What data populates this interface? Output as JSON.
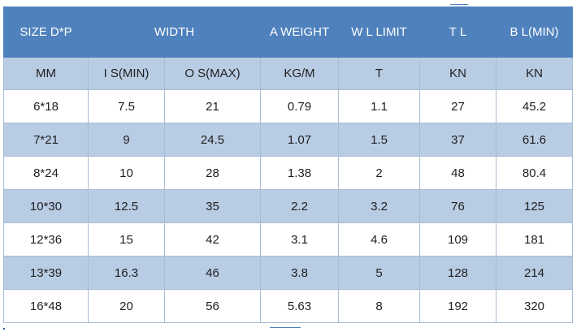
{
  "header": {
    "size": "SIZE D*P",
    "width": "WIDTH",
    "a_weight": "A WEIGHT",
    "wl_limit": "W L LIMIT",
    "tl": "T L",
    "bl": "B L(MIN)"
  },
  "units": [
    "MM",
    "I S(MIN)",
    "O S(MAX)",
    "KG/M",
    "T",
    "KN",
    "KN"
  ],
  "rows": [
    [
      "6*18",
      "7.5",
      "21",
      "0.79",
      "1.1",
      "27",
      "45.2"
    ],
    [
      "7*21",
      "9",
      "24.5",
      "1.07",
      "1.5",
      "37",
      "61.6"
    ],
    [
      "8*24",
      "10",
      "28",
      "1.38",
      "2",
      "48",
      "80.4"
    ],
    [
      "10*30",
      "12.5",
      "35",
      "2.2",
      "3.2",
      "76",
      "125"
    ],
    [
      "12*36",
      "15",
      "42",
      "3.1",
      "4.6",
      "109",
      "181"
    ],
    [
      "13*39",
      "16.3",
      "46",
      "3.8",
      "5",
      "128",
      "214"
    ],
    [
      "16*48",
      "20",
      "56",
      "5.63",
      "8",
      "192",
      "320"
    ]
  ],
  "colors": {
    "header_bg": "#4f81bd",
    "band_bg": "#b8cce4",
    "row_bg": "#ffffff",
    "header_text": "#ffffff",
    "body_text": "#1f1f1f"
  }
}
